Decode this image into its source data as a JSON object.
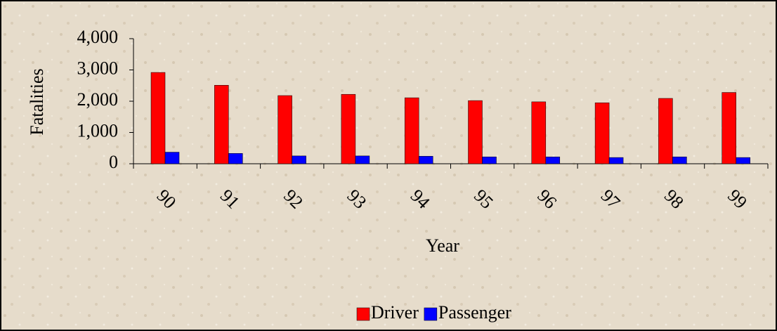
{
  "chart_data": {
    "type": "bar",
    "x_label": "Year",
    "y_label": "Fatalities",
    "categories": [
      "90",
      "91",
      "92",
      "93",
      "94",
      "95",
      "96",
      "97",
      "98",
      "99"
    ],
    "series": [
      {
        "name": "Driver",
        "color": "#ff0000",
        "values": [
          2920,
          2510,
          2180,
          2220,
          2110,
          2020,
          1980,
          1950,
          2090,
          2280
        ]
      },
      {
        "name": "Passenger",
        "color": "#0000ff",
        "values": [
          370,
          330,
          250,
          250,
          240,
          220,
          220,
          200,
          220,
          200
        ]
      }
    ],
    "ylim": [
      0,
      4000
    ],
    "yticks": [
      0,
      {
        "value": 1000,
        "label": "1,000"
      },
      {
        "value": 2000,
        "label": "2,000"
      },
      {
        "value": 3000,
        "label": "3,000"
      },
      {
        "value": 4000,
        "label": "4,000"
      }
    ],
    "legend": "bottom"
  }
}
